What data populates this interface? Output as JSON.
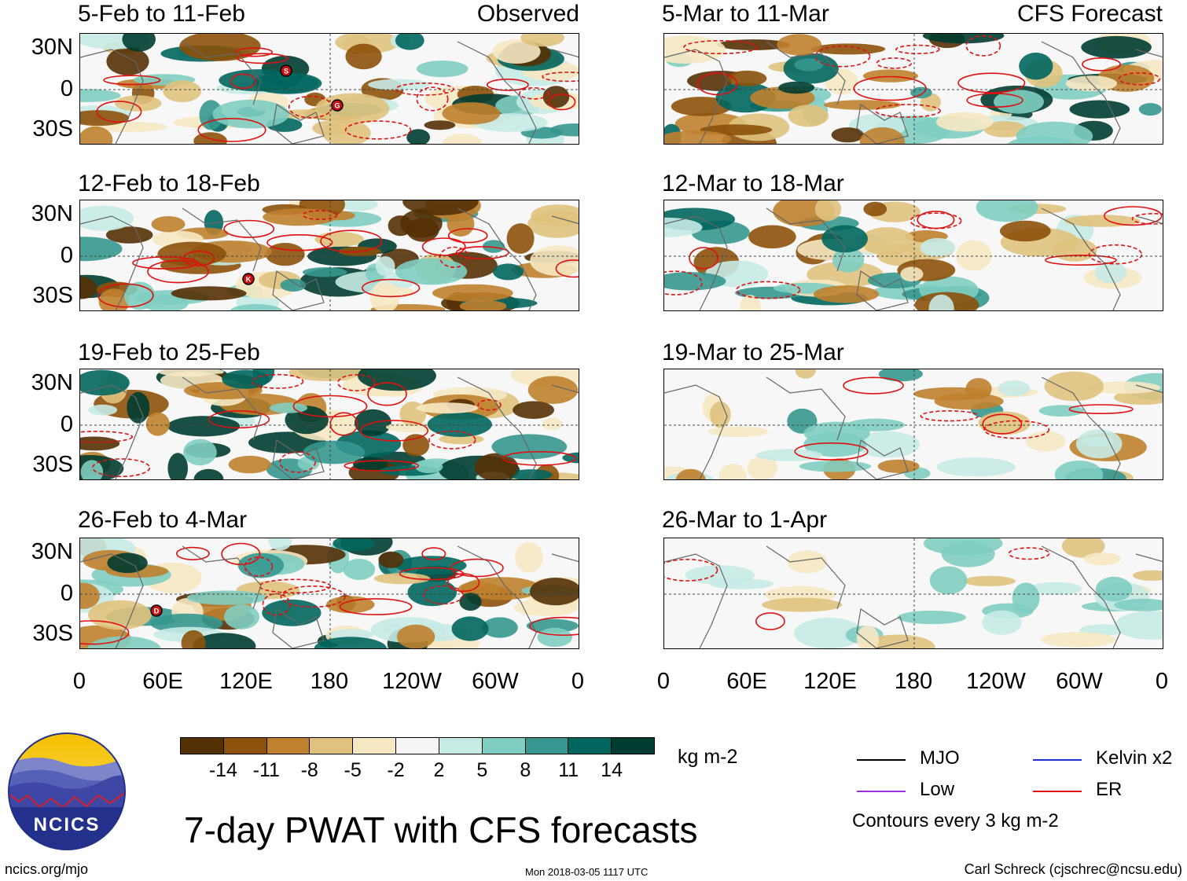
{
  "left_label": "Observed",
  "right_label": "CFS Forecast",
  "panels_left": [
    {
      "title": "5-Feb to 11-Feb"
    },
    {
      "title": "12-Feb to 18-Feb"
    },
    {
      "title": "19-Feb to 25-Feb"
    },
    {
      "title": "26-Feb to 4-Mar"
    }
  ],
  "panels_right": [
    {
      "title": "5-Mar to 11-Mar"
    },
    {
      "title": "12-Mar to 18-Mar"
    },
    {
      "title": "19-Mar to 25-Mar"
    },
    {
      "title": "26-Mar to 1-Apr"
    }
  ],
  "y_ticks": [
    "30N",
    "0",
    "30S"
  ],
  "x_ticks": [
    "0",
    "60E",
    "120E",
    "180",
    "120W",
    "60W",
    "0"
  ],
  "storm_markers": [
    "S",
    "G",
    "K",
    "D"
  ],
  "colorbar": {
    "units": "kg m-2",
    "labels": [
      "-14",
      "-11",
      "-8",
      "-5",
      "-2",
      "2",
      "5",
      "8",
      "11",
      "14"
    ],
    "colors": [
      "#543005",
      "#8c510a",
      "#bf812d",
      "#dfc27d",
      "#f6e8c3",
      "#f5f5f5",
      "#c7eae5",
      "#80cdc1",
      "#35978f",
      "#01665e",
      "#003c30"
    ]
  },
  "title": "7-day PWAT with CFS forecasts",
  "logo_text": "NCICS",
  "legend": {
    "items": [
      {
        "label": "MJO",
        "color": "#000000"
      },
      {
        "label": "Kelvin x2",
        "color": "#1f2fd6"
      },
      {
        "label": "Low",
        "color": "#9b30e0"
      },
      {
        "label": "ER",
        "color": "#e01010"
      }
    ],
    "note": "Contours every 3 kg m-2"
  },
  "footer": {
    "url": "ncics.org/mjo",
    "timestamp": "Mon 2018-03-05 1117 UTC",
    "credit": "Carl Schreck (cjschrec@ncsu.edu)"
  }
}
